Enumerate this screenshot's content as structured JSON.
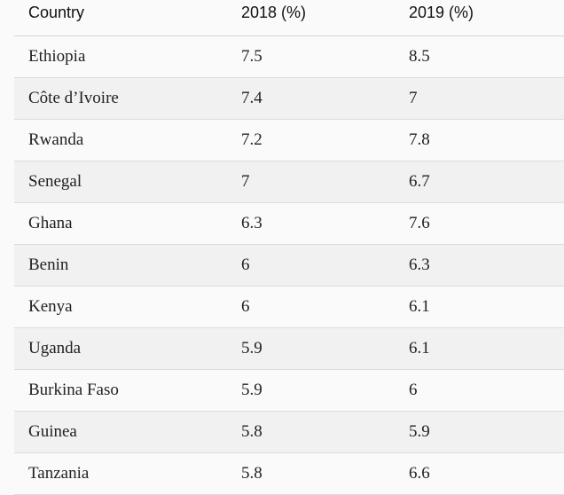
{
  "table": {
    "headers": [
      "Country",
      "2018 (%)",
      "2019 (%)"
    ],
    "rows": [
      [
        "Ethiopia",
        "7.5",
        "8.5"
      ],
      [
        "Côte d’Ivoire",
        "7.4",
        "7"
      ],
      [
        "Rwanda",
        "7.2",
        "7.8"
      ],
      [
        "Senegal",
        "7",
        "6.7"
      ],
      [
        "Ghana",
        "6.3",
        "7.6"
      ],
      [
        "Benin",
        "6",
        "6.3"
      ],
      [
        "Kenya",
        "6",
        "6.1"
      ],
      [
        "Uganda",
        "5.9",
        "6.1"
      ],
      [
        "Burkina Faso",
        "5.9",
        "6"
      ],
      [
        "Guinea",
        "5.8",
        "5.9"
      ],
      [
        "Tanzania",
        "5.8",
        "6.6"
      ]
    ]
  }
}
